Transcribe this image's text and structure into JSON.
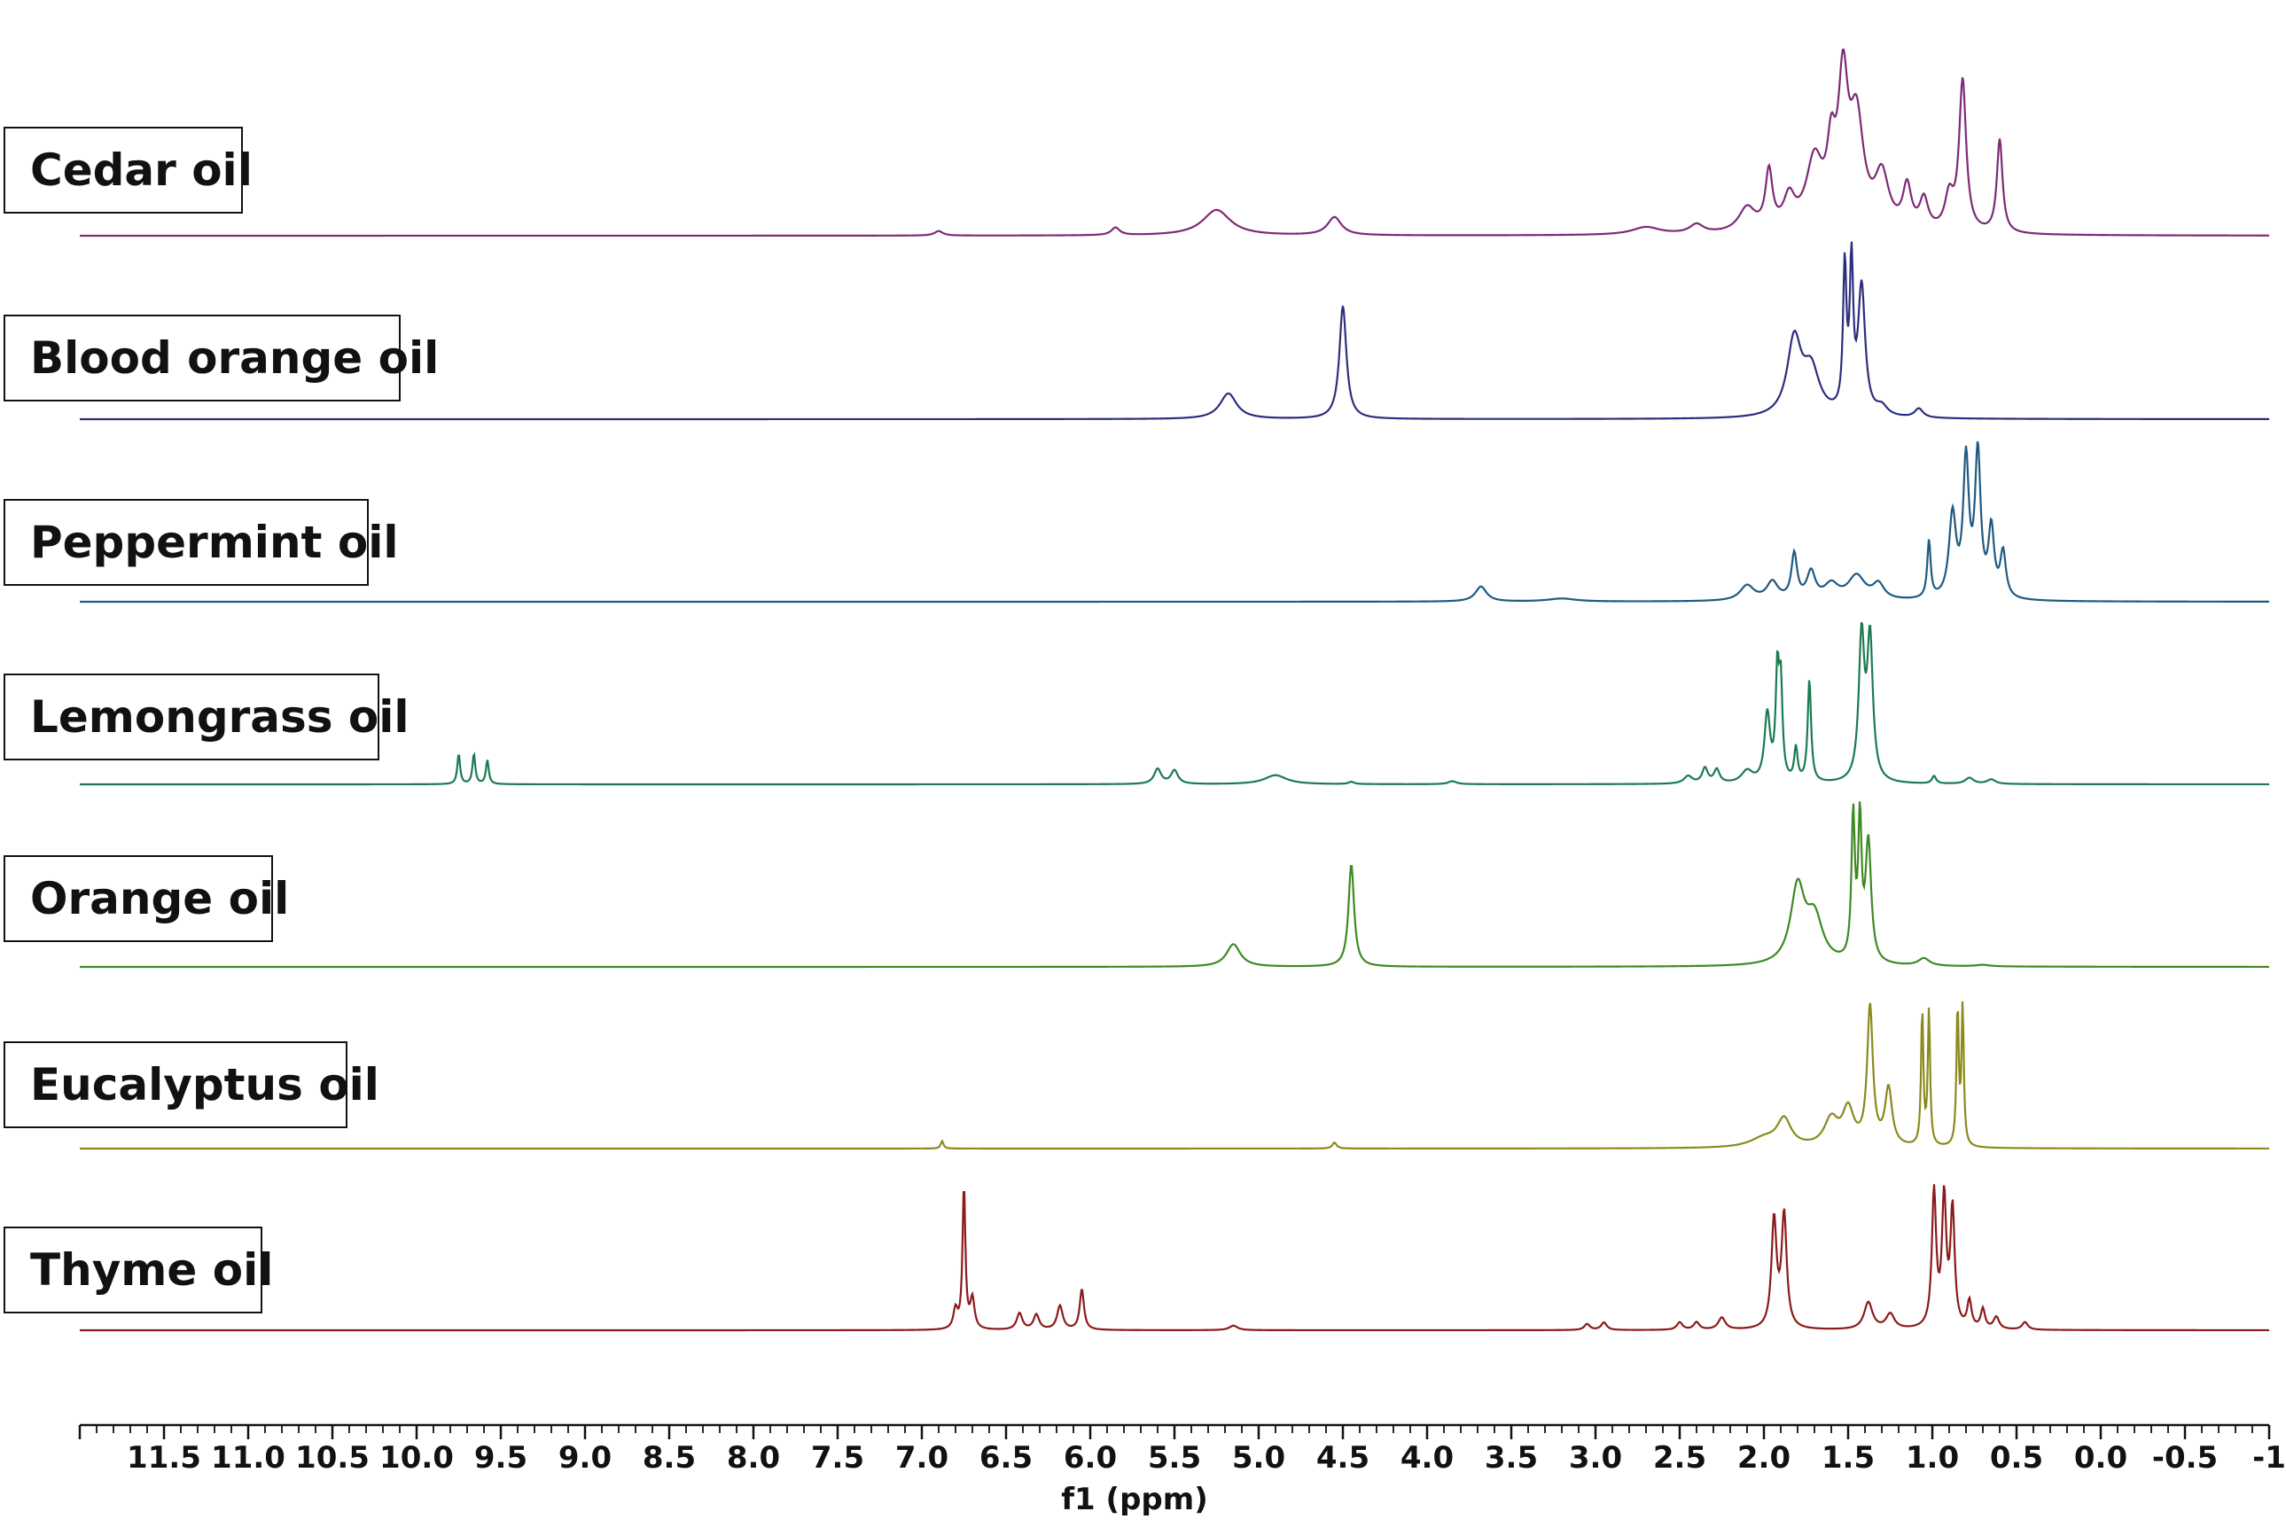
{
  "chart_data": {
    "type": "line",
    "title": "",
    "xlabel": "f1 (ppm)",
    "ylabel": "",
    "xlim": [
      12.0,
      -1.0
    ],
    "x_reversed": true,
    "grid": false,
    "legend": "none",
    "x_ticks": [
      "11.5",
      "11.0",
      "10.5",
      "10.0",
      "9.5",
      "9.0",
      "8.5",
      "8.0",
      "7.5",
      "7.0",
      "6.5",
      "6.0",
      "5.5",
      "5.0",
      "4.5",
      "4.0",
      "3.5",
      "3.0",
      "2.5",
      "2.0",
      "1.5",
      "1.0",
      "0.5",
      "0.0",
      "-0.5",
      "-1"
    ],
    "series": [
      {
        "name": "Cedar oil",
        "color": "#7d2a78",
        "peaks": [
          [
            6.9,
            0.03,
            0.03
          ],
          [
            5.85,
            0.05,
            0.03
          ],
          [
            5.25,
            0.17,
            0.1
          ],
          [
            4.55,
            0.12,
            0.05
          ],
          [
            2.7,
            0.05,
            0.1
          ],
          [
            2.4,
            0.06,
            0.05
          ],
          [
            2.1,
            0.16,
            0.06
          ],
          [
            1.97,
            0.38,
            0.025
          ],
          [
            1.85,
            0.2,
            0.04
          ],
          [
            1.7,
            0.45,
            0.06
          ],
          [
            1.6,
            0.42,
            0.03
          ],
          [
            1.53,
            0.9,
            0.035
          ],
          [
            1.45,
            0.7,
            0.05
          ],
          [
            1.3,
            0.35,
            0.05
          ],
          [
            1.15,
            0.28,
            0.03
          ],
          [
            1.05,
            0.2,
            0.03
          ],
          [
            0.9,
            0.22,
            0.03
          ],
          [
            0.82,
            1.0,
            0.025
          ],
          [
            0.6,
            0.62,
            0.02
          ]
        ]
      },
      {
        "name": "Blood orange oil",
        "color": "#2b2e7d",
        "peaks": [
          [
            5.18,
            0.17,
            0.06
          ],
          [
            4.5,
            0.75,
            0.025
          ],
          [
            1.82,
            0.5,
            0.05
          ],
          [
            1.72,
            0.3,
            0.06
          ],
          [
            1.52,
            0.95,
            0.012
          ],
          [
            1.48,
            0.95,
            0.012
          ],
          [
            1.42,
            0.85,
            0.025
          ],
          [
            1.3,
            0.06,
            0.04
          ],
          [
            1.08,
            0.06,
            0.03
          ]
        ]
      },
      {
        "name": "Peppermint oil",
        "color": "#1f5a80",
        "peaks": [
          [
            3.68,
            0.1,
            0.04
          ],
          [
            3.2,
            0.02,
            0.1
          ],
          [
            2.1,
            0.1,
            0.05
          ],
          [
            1.95,
            0.12,
            0.04
          ],
          [
            1.82,
            0.3,
            0.02
          ],
          [
            1.72,
            0.18,
            0.03
          ],
          [
            1.6,
            0.1,
            0.05
          ],
          [
            1.45,
            0.16,
            0.06
          ],
          [
            1.32,
            0.1,
            0.04
          ],
          [
            1.02,
            0.38,
            0.012
          ],
          [
            0.88,
            0.55,
            0.025
          ],
          [
            0.8,
            0.9,
            0.02
          ],
          [
            0.73,
            0.95,
            0.02
          ],
          [
            0.65,
            0.45,
            0.02
          ],
          [
            0.58,
            0.3,
            0.02
          ]
        ]
      },
      {
        "name": "Lemongrass oil",
        "color": "#1b7a52",
        "peaks": [
          [
            9.75,
            0.2,
            0.01
          ],
          [
            9.66,
            0.2,
            0.01
          ],
          [
            9.58,
            0.16,
            0.01
          ],
          [
            5.6,
            0.1,
            0.025
          ],
          [
            5.5,
            0.09,
            0.025
          ],
          [
            4.9,
            0.06,
            0.08
          ],
          [
            4.45,
            0.015,
            0.02
          ],
          [
            3.85,
            0.02,
            0.03
          ],
          [
            2.45,
            0.05,
            0.03
          ],
          [
            2.35,
            0.1,
            0.02
          ],
          [
            2.28,
            0.09,
            0.02
          ],
          [
            2.1,
            0.08,
            0.04
          ],
          [
            1.98,
            0.45,
            0.02
          ],
          [
            1.92,
            0.68,
            0.012
          ],
          [
            1.9,
            0.6,
            0.012
          ],
          [
            1.81,
            0.22,
            0.012
          ],
          [
            1.73,
            0.68,
            0.012
          ],
          [
            1.42,
            0.95,
            0.02
          ],
          [
            1.37,
            0.93,
            0.02
          ],
          [
            0.99,
            0.05,
            0.015
          ],
          [
            0.78,
            0.04,
            0.03
          ],
          [
            0.65,
            0.03,
            0.03
          ]
        ]
      },
      {
        "name": "Orange oil",
        "color": "#3d8a22",
        "peaks": [
          [
            5.15,
            0.15,
            0.05
          ],
          [
            4.45,
            0.68,
            0.02
          ],
          [
            1.8,
            0.5,
            0.05
          ],
          [
            1.7,
            0.3,
            0.06
          ],
          [
            1.47,
            0.95,
            0.012
          ],
          [
            1.43,
            0.9,
            0.012
          ],
          [
            1.38,
            0.8,
            0.02
          ],
          [
            1.05,
            0.05,
            0.04
          ],
          [
            0.7,
            0.01,
            0.05
          ]
        ]
      },
      {
        "name": "Eucalyptus oil",
        "color": "#8a8a1e",
        "peaks": [
          [
            6.88,
            0.05,
            0.01
          ],
          [
            4.55,
            0.04,
            0.015
          ],
          [
            2.0,
            0.06,
            0.1
          ],
          [
            1.88,
            0.18,
            0.05
          ],
          [
            1.6,
            0.18,
            0.05
          ],
          [
            1.5,
            0.24,
            0.04
          ],
          [
            1.37,
            0.92,
            0.02
          ],
          [
            1.26,
            0.38,
            0.025
          ],
          [
            1.06,
            0.9,
            0.008
          ],
          [
            1.02,
            0.9,
            0.008
          ],
          [
            0.85,
            0.92,
            0.008
          ],
          [
            0.82,
            0.92,
            0.008
          ]
        ]
      },
      {
        "name": "Thyme oil",
        "color": "#8b1a1a",
        "peaks": [
          [
            6.8,
            0.13,
            0.015
          ],
          [
            6.75,
            0.95,
            0.01
          ],
          [
            6.7,
            0.2,
            0.015
          ],
          [
            6.42,
            0.11,
            0.02
          ],
          [
            6.32,
            0.1,
            0.02
          ],
          [
            6.18,
            0.16,
            0.02
          ],
          [
            6.05,
            0.27,
            0.015
          ],
          [
            5.15,
            0.03,
            0.03
          ],
          [
            3.05,
            0.04,
            0.02
          ],
          [
            2.95,
            0.05,
            0.02
          ],
          [
            2.5,
            0.05,
            0.02
          ],
          [
            2.4,
            0.05,
            0.02
          ],
          [
            2.25,
            0.08,
            0.025
          ],
          [
            1.94,
            0.72,
            0.018
          ],
          [
            1.88,
            0.75,
            0.018
          ],
          [
            1.38,
            0.18,
            0.03
          ],
          [
            1.25,
            0.1,
            0.03
          ],
          [
            0.99,
            0.9,
            0.015
          ],
          [
            0.93,
            0.85,
            0.015
          ],
          [
            0.88,
            0.78,
            0.015
          ],
          [
            0.78,
            0.18,
            0.015
          ],
          [
            0.7,
            0.13,
            0.015
          ],
          [
            0.62,
            0.08,
            0.02
          ],
          [
            0.45,
            0.05,
            0.02
          ]
        ]
      }
    ]
  }
}
